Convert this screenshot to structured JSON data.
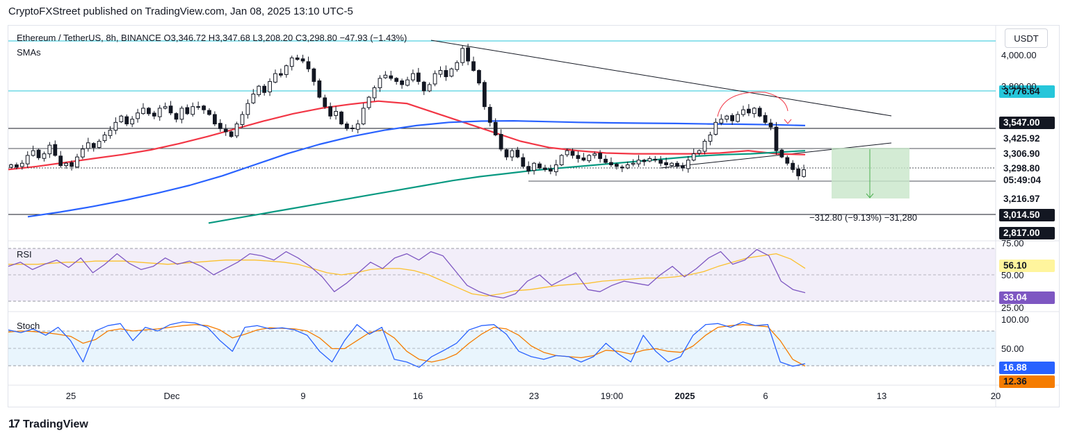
{
  "header": {
    "publisher": "CryptoFXStreet published on TradingView.com, Jan 08, 2025 13:10 UTC-5",
    "symbol": "Ethereum / TetherUS, 8h, BINANCE",
    "ohlc": "O3,346.72 H3,347.68 L3,208.20 C3,298.80 −47.93 (−1.43%)",
    "indicator_label": "SMAs",
    "currency": "USDT"
  },
  "footer": {
    "brand": "TradingView",
    "brand_mark": "17"
  },
  "measure_label": "−312.80 (−9.13%) −31,280",
  "colors": {
    "up": "#ffffff",
    "down": "#131722",
    "sma50": "#f23645",
    "sma100": "#2962ff",
    "sma200": "#089981",
    "rsi": "#7e57c2",
    "rsi_ma": "#fbc02d",
    "stoch_k": "#2962ff",
    "stoch_d": "#f57c00",
    "cyan": "#26c6da"
  },
  "price_labels": [
    {
      "text": "3,776.64",
      "bg": "#26c6da",
      "fg": "#131722"
    },
    {
      "text": "3,547.00",
      "bg": "#131722",
      "fg": "#ffffff"
    },
    {
      "text": "3,425.92",
      "bg": "#ffffff",
      "fg": "#131722"
    },
    {
      "text": "3,306.90",
      "bg": "#ffffff",
      "fg": "#131722"
    },
    {
      "text": "3,298.80",
      "bg": "#ffffff",
      "fg": "#131722"
    },
    {
      "text": "05:49:04",
      "bg": "#ffffff",
      "fg": "#131722"
    },
    {
      "text": "3,216.97",
      "bg": "#ffffff",
      "fg": "#131722"
    },
    {
      "text": "3,014.50",
      "bg": "#131722",
      "fg": "#ffffff"
    },
    {
      "text": "2,817.00",
      "bg": "#131722",
      "fg": "#ffffff"
    },
    {
      "text": "56.10",
      "bg": "#fff59d",
      "fg": "#131722"
    },
    {
      "text": "33.04",
      "bg": "#7e57c2",
      "fg": "#ffffff"
    },
    {
      "text": "16.88",
      "bg": "#2962ff",
      "fg": "#ffffff"
    },
    {
      "text": "12.36",
      "bg": "#f57c00",
      "fg": "#131722"
    }
  ],
  "axis_ticks": {
    "price": [
      "4,000.00",
      "3,800.00"
    ],
    "rsi": [
      "75.00",
      "50.00",
      "25.00"
    ],
    "stoch": [
      "100.00",
      "50.00"
    ]
  },
  "chart_data": [
    {
      "type": "candlestick",
      "title": "Ethereum / TetherUS, 8h, BINANCE",
      "x_ticks": [
        "25",
        "Dec",
        "9",
        "16",
        "23",
        "19:00",
        "2025",
        "6",
        "13",
        "20"
      ],
      "close_series": [
        3330,
        3315,
        3340,
        3390,
        3420,
        3375,
        3400,
        3455,
        3390,
        3325,
        3340,
        3320,
        3380,
        3430,
        3470,
        3440,
        3480,
        3520,
        3550,
        3600,
        3640,
        3590,
        3620,
        3660,
        3690,
        3655,
        3640,
        3690,
        3700,
        3660,
        3620,
        3690,
        3655,
        3700,
        3700,
        3680,
        3650,
        3590,
        3560,
        3540,
        3510,
        3590,
        3650,
        3720,
        3780,
        3830,
        3790,
        3860,
        3910,
        3900,
        3960,
        4010,
        4000,
        3990,
        3940,
        3860,
        3760,
        3700,
        3640,
        3670,
        3590,
        3560,
        3560,
        3590,
        3690,
        3760,
        3820,
        3880,
        3900,
        3880,
        3860,
        3840,
        3870,
        3910,
        3860,
        3800,
        3840,
        3910,
        3930,
        3890,
        3940,
        3980,
        4070,
        3990,
        3930,
        3850,
        3700,
        3600,
        3520,
        3430,
        3380,
        3420,
        3380,
        3320,
        3290,
        3340,
        3310,
        3300,
        3290,
        3330,
        3390,
        3420,
        3390,
        3370,
        3360,
        3390,
        3400,
        3370,
        3345,
        3330,
        3320,
        3310,
        3330,
        3340,
        3360,
        3350,
        3370,
        3360,
        3340,
        3330,
        3340,
        3320,
        3310,
        3360,
        3400,
        3420,
        3480,
        3520,
        3600,
        3620,
        3640,
        3610,
        3650,
        3680,
        3660,
        3690,
        3640,
        3600,
        3570,
        3420,
        3380,
        3340,
        3300,
        3260,
        3298.8
      ],
      "last_close": 3298.8
    },
    {
      "type": "line",
      "series": [
        {
          "name": "SMA 50",
          "values": [
            3300,
            3320,
            3345,
            3370,
            3395,
            3425,
            3465,
            3510,
            3560,
            3610,
            3655,
            3690,
            3715,
            3735,
            3720,
            3660,
            3600,
            3540,
            3480,
            3440,
            3420,
            3405,
            3400,
            3400,
            3400,
            3405,
            3420,
            3400,
            3395
          ]
        },
        {
          "name": "SMA 100",
          "values": [
            3000,
            3030,
            3065,
            3105,
            3150,
            3200,
            3260,
            3330,
            3400,
            3460,
            3510,
            3550,
            3580,
            3600,
            3608,
            3610,
            3605,
            3600,
            3597,
            3595,
            3593,
            3590,
            3588,
            3585,
            3580
          ]
        },
        {
          "name": "SMA 200",
          "values": [
            2960,
            2990,
            3020,
            3050,
            3080,
            3110,
            3140,
            3170,
            3200,
            3230,
            3255,
            3275,
            3295,
            3310,
            3325,
            3340,
            3355,
            3370,
            3385,
            3395,
            3400,
            3410,
            3420
          ]
        }
      ]
    },
    {
      "type": "line",
      "name": "RSI",
      "ylim": [
        25,
        75
      ],
      "series": [
        {
          "name": "RSI",
          "values": [
            58,
            62,
            55,
            60,
            64,
            57,
            66,
            52,
            60,
            70,
            61,
            55,
            58,
            66,
            60,
            63,
            58,
            50,
            56,
            62,
            70,
            68,
            64,
            72,
            66,
            58,
            48,
            34,
            42,
            52,
            62,
            56,
            66,
            70,
            64,
            72,
            68,
            54,
            40,
            34,
            30,
            28,
            32,
            44,
            50,
            40,
            46,
            52,
            36,
            34,
            40,
            44,
            42,
            40,
            50,
            58,
            48,
            56,
            66,
            72,
            60,
            64,
            74,
            68,
            44,
            36,
            33.04
          ]
        },
        {
          "name": "RSI MA",
          "values": [
            60,
            60,
            60,
            61,
            62,
            62,
            63,
            63,
            63,
            62,
            61,
            60,
            61,
            62,
            63,
            64,
            64,
            64,
            63,
            62,
            60,
            56,
            52,
            50,
            52,
            55,
            56,
            56,
            54,
            50,
            44,
            38,
            32,
            30,
            32,
            35,
            36,
            38,
            40,
            41,
            42,
            44,
            45,
            46,
            47,
            47,
            48,
            50,
            53,
            58,
            62,
            66,
            68,
            70,
            65,
            56.1
          ]
        }
      ]
    },
    {
      "type": "line",
      "name": "Stoch",
      "ylim": [
        0,
        100
      ],
      "series": [
        {
          "name": "%K",
          "values": [
            80,
            75,
            82,
            70,
            85,
            60,
            20,
            78,
            88,
            92,
            60,
            85,
            78,
            90,
            95,
            93,
            85,
            60,
            40,
            85,
            88,
            82,
            84,
            80,
            70,
            40,
            20,
            60,
            90,
            72,
            85,
            25,
            20,
            10,
            30,
            42,
            55,
            80,
            88,
            90,
            72,
            40,
            30,
            25,
            32,
            30,
            20,
            30,
            55,
            35,
            20,
            70,
            40,
            20,
            30,
            70,
            90,
            92,
            85,
            95,
            88,
            90,
            20,
            12,
            16.88
          ]
        },
        {
          "name": "%D",
          "values": [
            76,
            78,
            77,
            75,
            72,
            68,
            55,
            62,
            78,
            82,
            78,
            80,
            82,
            85,
            88,
            90,
            88,
            80,
            65,
            72,
            80,
            84,
            83,
            82,
            78,
            65,
            45,
            45,
            60,
            75,
            80,
            65,
            40,
            25,
            20,
            25,
            35,
            55,
            72,
            85,
            82,
            70,
            50,
            38,
            32,
            30,
            28,
            32,
            42,
            40,
            35,
            42,
            45,
            40,
            38,
            50,
            70,
            85,
            88,
            90,
            88,
            86,
            60,
            25,
            12.36
          ]
        }
      ]
    }
  ]
}
